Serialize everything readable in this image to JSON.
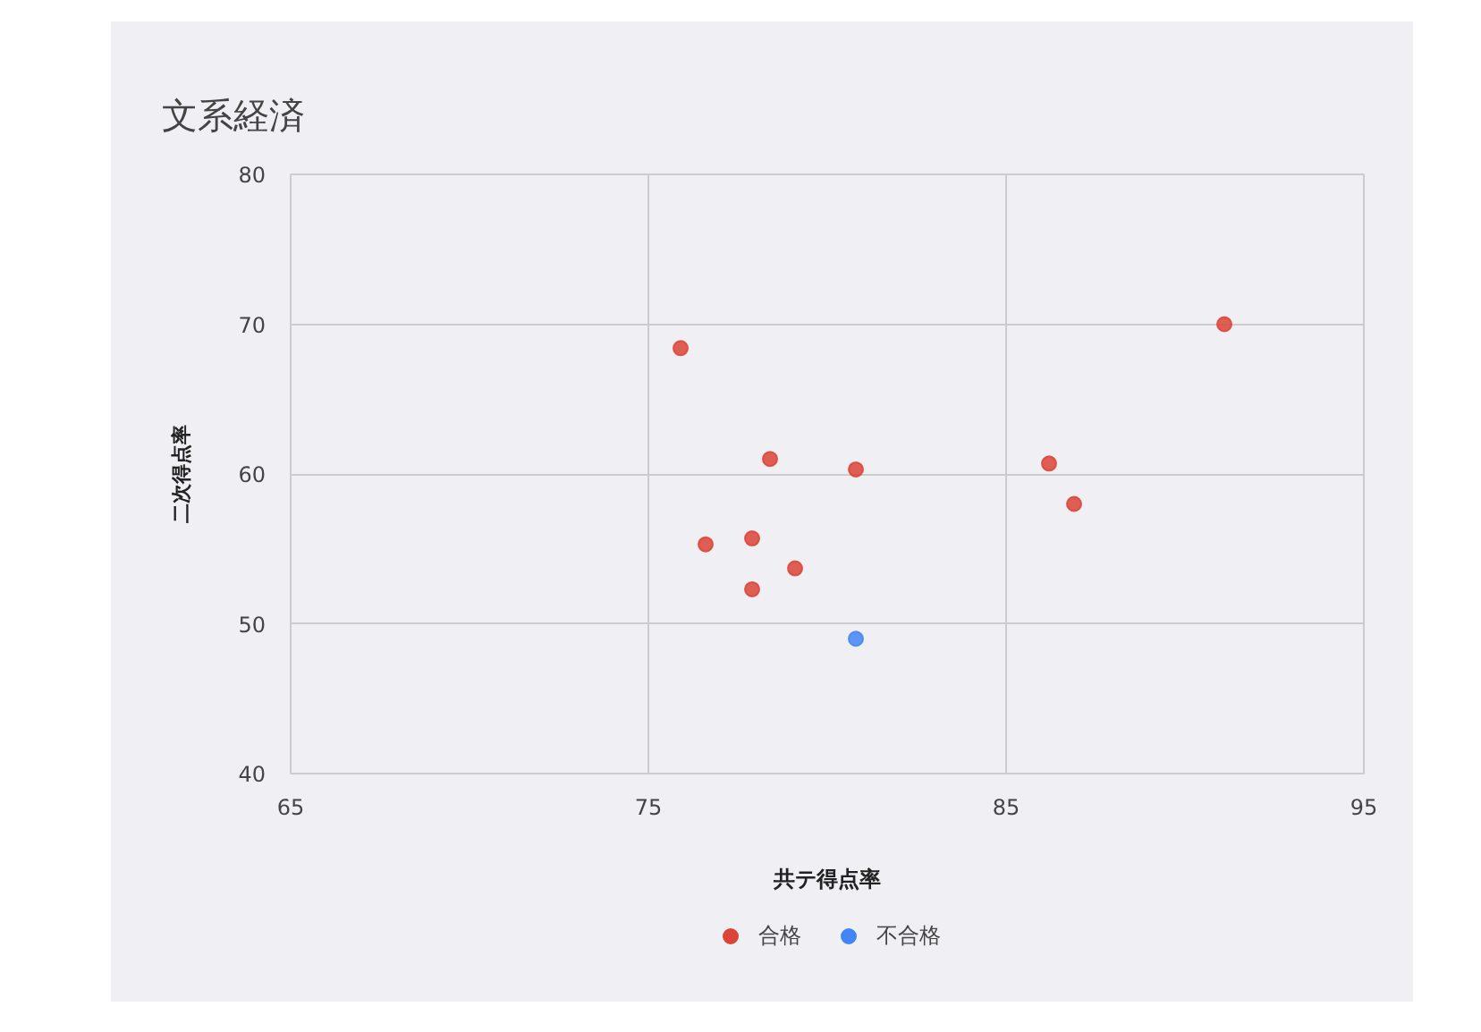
{
  "chart_data": {
    "type": "scatter",
    "title": "文系経済",
    "xlabel": "共テ得点率",
    "ylabel": "二次得点率",
    "xlim": [
      65,
      95
    ],
    "ylim": [
      40,
      80
    ],
    "xticks": [
      65,
      75,
      85,
      95
    ],
    "yticks": [
      40,
      50,
      60,
      70,
      80
    ],
    "grid": true,
    "legend": "bottom",
    "marker": "circle",
    "series": [
      {
        "name": "合格",
        "color": "#db4437",
        "x": [
          75.9,
          78.4,
          76.6,
          77.9,
          79.1,
          77.9,
          80.8,
          86.2,
          86.9,
          91.1
        ],
        "values": [
          68.4,
          61.0,
          55.3,
          55.7,
          53.7,
          52.3,
          60.3,
          60.7,
          58.0,
          70.0
        ]
      },
      {
        "name": "不合格",
        "color": "#4285f4",
        "x": [
          80.8
        ],
        "values": [
          49.0
        ]
      }
    ]
  }
}
